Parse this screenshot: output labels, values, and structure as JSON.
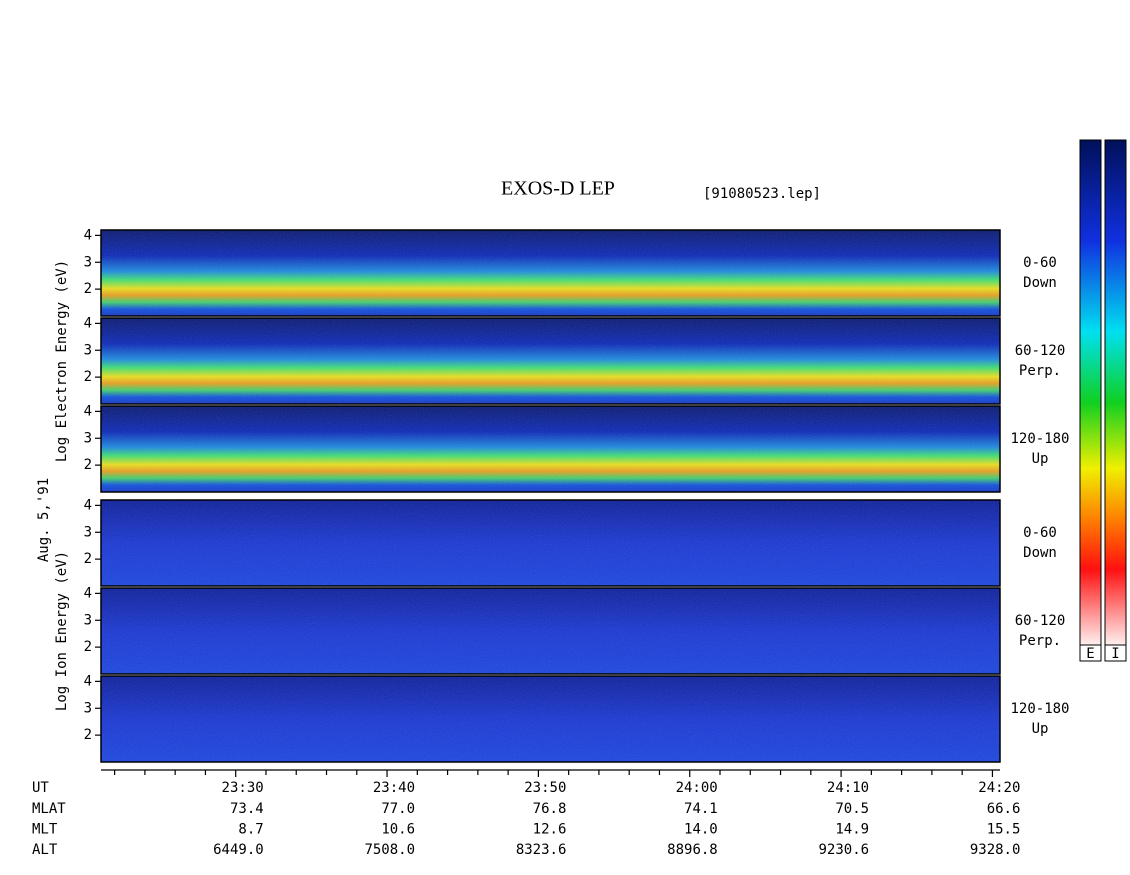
{
  "chart_data": {
    "type": "spectrogram",
    "title": "EXOS-D LEP",
    "subtitle": "[91080523.lep]",
    "date": "Aug. 5,'91",
    "groups": [
      {
        "ylabel": "Log Electron Energy (eV)",
        "panels": [
          {
            "angle": "0-60",
            "direction": "Down"
          },
          {
            "angle": "60-120",
            "direction": "Perp."
          },
          {
            "angle": "120-180",
            "direction": "Up"
          }
        ]
      },
      {
        "ylabel": "Log Ion Energy (eV)",
        "panels": [
          {
            "angle": "0-60",
            "direction": "Down"
          },
          {
            "angle": "60-120",
            "direction": "Perp."
          },
          {
            "angle": "120-180",
            "direction": "Up"
          }
        ]
      }
    ],
    "ylim": [
      1,
      4.2
    ],
    "yticks": [
      2,
      3,
      4
    ],
    "xlabel": "UT",
    "xlim": [
      21.1,
      80.5
    ],
    "xticks": [
      {
        "value": 30,
        "label": "23:30"
      },
      {
        "value": 40,
        "label": "23:40"
      },
      {
        "value": 50,
        "label": "23:50"
      },
      {
        "value": 60,
        "label": "24:00"
      },
      {
        "value": 70,
        "label": "24:10"
      },
      {
        "value": 80,
        "label": "24:20"
      }
    ],
    "xminorticks": [
      22,
      24,
      26,
      28,
      32,
      34,
      36,
      38,
      42,
      44,
      46,
      48,
      52,
      54,
      56,
      58,
      62,
      64,
      66,
      68,
      72,
      74,
      76,
      78
    ],
    "ephemeris": [
      {
        "name": "MLAT",
        "values": [
          "73.4",
          "77.0",
          "76.8",
          "74.1",
          "70.5",
          "66.6"
        ]
      },
      {
        "name": "MLT",
        "values": [
          "8.7",
          "10.6",
          "12.6",
          "14.0",
          "14.9",
          "15.5"
        ]
      },
      {
        "name": "ALT",
        "values": [
          "6449.0",
          "7508.0",
          "8323.6",
          "8896.8",
          "9230.6",
          "9328.0"
        ]
      }
    ],
    "colorbars": [
      "E",
      "I"
    ]
  }
}
